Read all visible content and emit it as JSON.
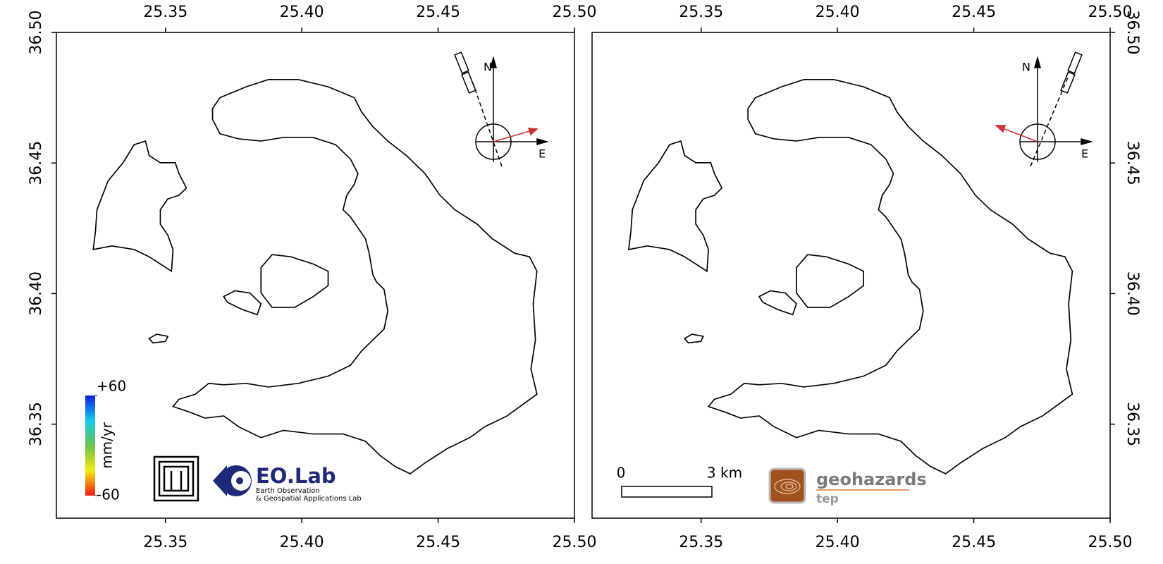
{
  "map": {
    "xlim": [
      25.31,
      25.5
    ],
    "ylim": [
      36.314,
      36.5
    ],
    "xticks": [
      25.35,
      {
        "value": 25.4,
        "label": "25.40"
      },
      25.45,
      {
        "value": 25.5,
        "label": "25.50"
      }
    ],
    "yticks": [
      36.35,
      {
        "value": 36.4,
        "label": "36.40"
      },
      36.45,
      {
        "value": 36.5,
        "label": "36.50"
      }
    ]
  },
  "compass": {
    "north": "N",
    "east": "E"
  },
  "colorbar": {
    "label": "mm/yr",
    "lim": [
      -60,
      60
    ],
    "ticks": [
      {
        "value": 60,
        "label": "+60"
      },
      -60
    ]
  },
  "scale_bar": {
    "labels": [
      "0",
      "3 km"
    ]
  },
  "logos": {
    "eolab": "EO.Lab",
    "eolab_line1": "Earth Observation",
    "eolab_line2": "& Geospatial Applications Lab",
    "geohazards": "geohazards",
    "tep": "tep"
  }
}
